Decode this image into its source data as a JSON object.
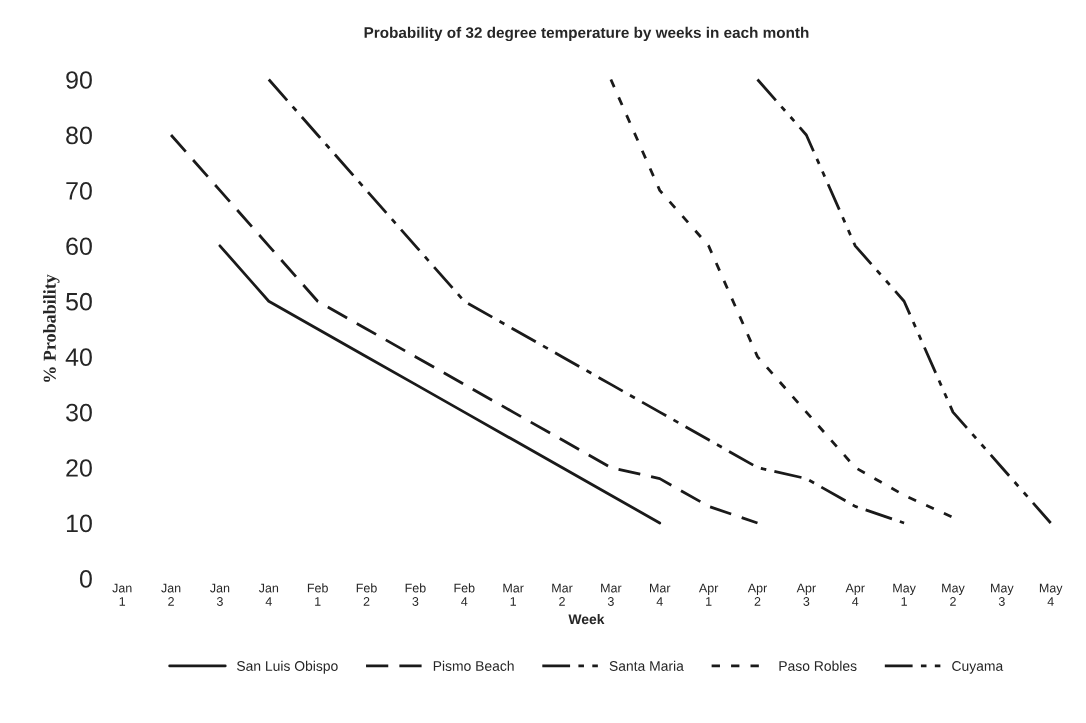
{
  "chart_data": {
    "type": "line",
    "title": "Probability of 32 degree temperature by weeks in each month",
    "xlabel": "Week",
    "ylabel": "% Probability",
    "categories": [
      "Jan\n1",
      "Jan\n2",
      "Jan\n3",
      "Jan\n4",
      "Feb\n1",
      "Feb\n2",
      "Feb\n3",
      "Feb\n4",
      "Mar\n1",
      "Mar\n2",
      "Mar\n3",
      "Mar\n4",
      "Apr\n1",
      "Apr\n2",
      "Apr\n3",
      "Apr\n4",
      "May\n1",
      "May\n2",
      "May\n3",
      "May\n4"
    ],
    "series": [
      {
        "name": "San Luis Obispo",
        "color": "#1a1a1a",
        "line_style": "solid",
        "values": [
          null,
          null,
          60,
          50,
          45,
          40,
          35,
          30,
          25,
          20,
          15,
          10,
          null,
          null,
          null,
          null,
          null,
          null,
          null,
          null
        ]
      },
      {
        "name": "Pismo Beach",
        "color": "#1a1a1a",
        "line_style": "dashed",
        "values": [
          null,
          80,
          70,
          60,
          50,
          45,
          40,
          35,
          30,
          25,
          20,
          18,
          13,
          10,
          null,
          null,
          null,
          null,
          null,
          null
        ]
      },
      {
        "name": "Santa Maria",
        "color": "#1a1a1a",
        "line_style": "dashed",
        "values": [
          null,
          null,
          null,
          90,
          80,
          70,
          60,
          50,
          45,
          40,
          35,
          30,
          25,
          20,
          18,
          13,
          10,
          null,
          null,
          null
        ]
      },
      {
        "name": "Paso Robles",
        "color": "#1a1a1a",
        "line_style": "dotted",
        "values": [
          null,
          null,
          null,
          null,
          null,
          null,
          null,
          null,
          null,
          null,
          90,
          70,
          60,
          40,
          30,
          20,
          15,
          11,
          null,
          null
        ]
      },
      {
        "name": "Cuyama",
        "color": "#1a1a1a",
        "line_style": "dashed",
        "values": [
          null,
          null,
          null,
          null,
          null,
          null,
          null,
          null,
          null,
          null,
          null,
          null,
          null,
          90,
          80,
          60,
          50,
          30,
          20,
          10
        ]
      }
    ],
    "ylim": [
      0,
      90
    ],
    "yticks": [
      0,
      10,
      20,
      30,
      40,
      50,
      60,
      70,
      80,
      90
    ],
    "grid": false,
    "legend": "bottom",
    "marker": "none"
  }
}
